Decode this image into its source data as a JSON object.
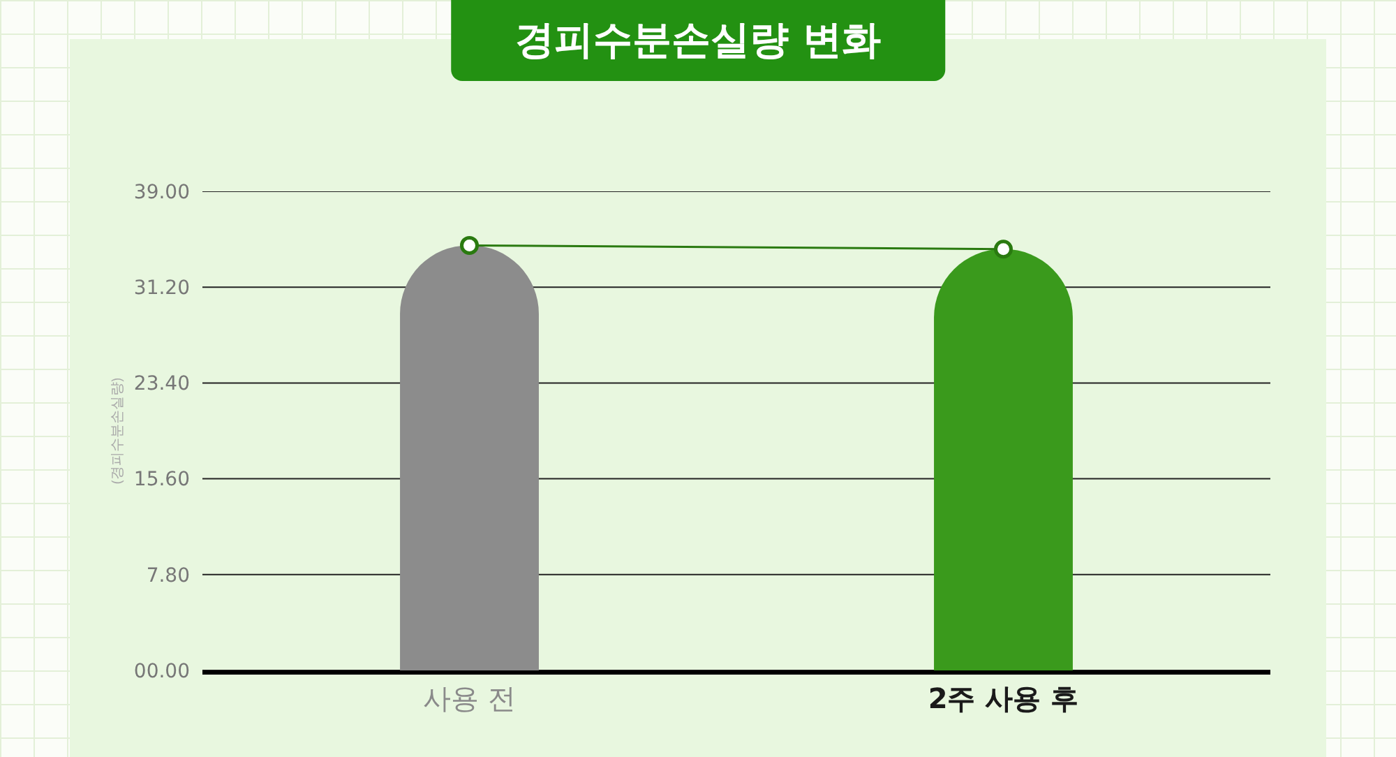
{
  "chart_data": {
    "type": "bar",
    "title": "경피수분손실량 변화",
    "ylabel": "(경피수분손실량)",
    "categories": [
      "사용 전",
      "2주 사용 후"
    ],
    "series": [
      {
        "colors": [
          "#8c8c8c",
          "#3a9a1c"
        ],
        "values": [
          34.6,
          34.3
        ]
      },
      {
        "type": "line",
        "color": "#2a7a10",
        "values": [
          34.6,
          34.3
        ],
        "marker": "circle"
      }
    ],
    "ylim": [
      0,
      39
    ],
    "yticks": [
      {
        "value": 0,
        "label": "00.00"
      },
      {
        "value": 7.8,
        "label": "7.80"
      },
      {
        "value": 15.6,
        "label": "15.60"
      },
      {
        "value": 23.4,
        "label": "23.40"
      },
      {
        "value": 31.2,
        "label": "31.20"
      },
      {
        "value": 39,
        "label": "39.00"
      }
    ],
    "grid": "y"
  }
}
